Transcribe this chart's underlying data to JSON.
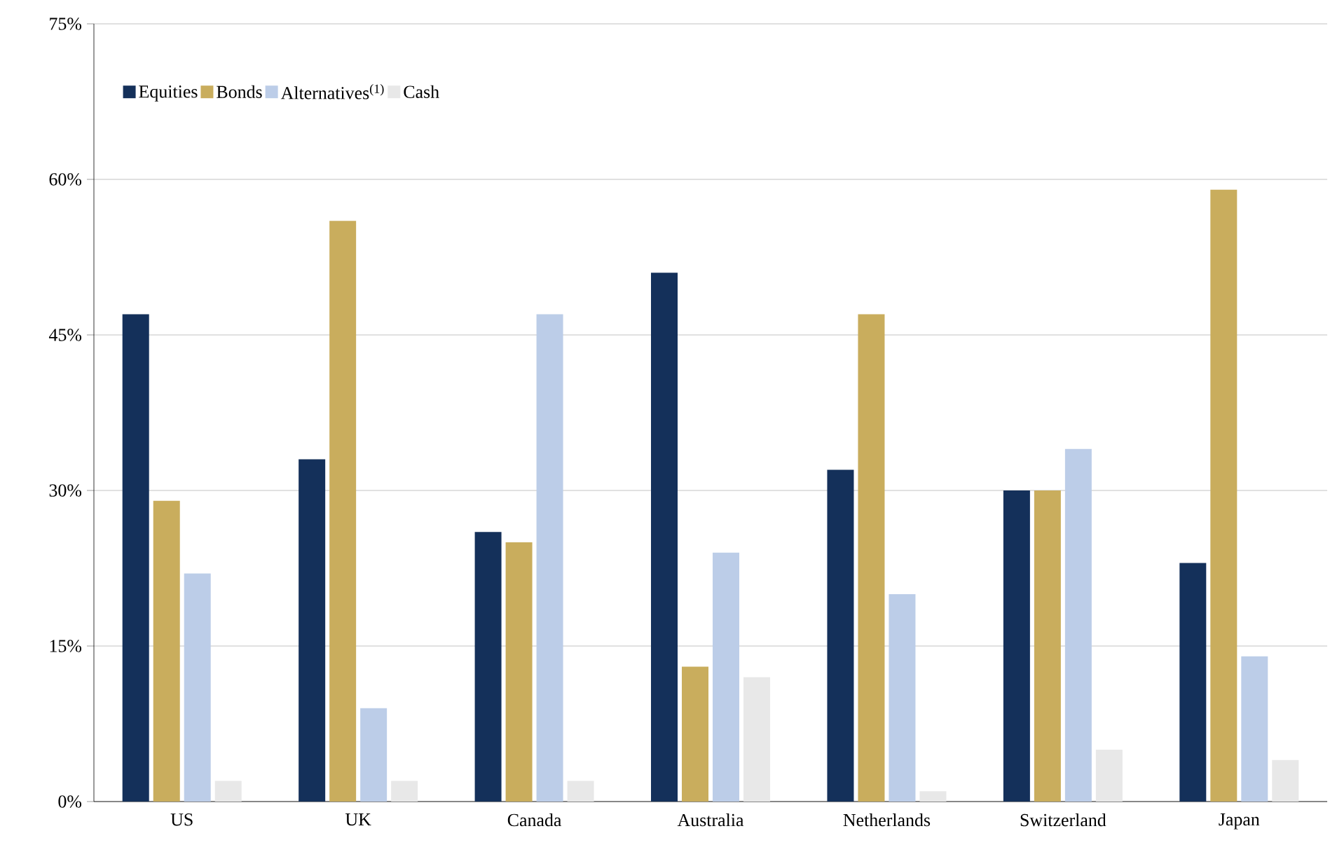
{
  "chart_data": {
    "type": "bar",
    "categories": [
      "US",
      "UK",
      "Canada",
      "Australia",
      "Netherlands",
      "Switzerland",
      "Japan"
    ],
    "series": [
      {
        "name": "Equities",
        "color": "#14305a",
        "values": [
          47,
          33,
          26,
          51,
          32,
          30,
          23
        ]
      },
      {
        "name": "Bonds",
        "color": "#c9ad5d",
        "values": [
          29,
          56,
          25,
          13,
          47,
          30,
          59
        ]
      },
      {
        "name": "Alternatives$^{(1)}$",
        "color": "#bccde8",
        "values": [
          22,
          9,
          47,
          24,
          20,
          34,
          14
        ]
      },
      {
        "name": "Cash",
        "color": "#e8e8e8",
        "values": [
          2,
          2,
          2,
          12,
          1,
          5,
          4
        ]
      }
    ],
    "ylim": [
      0,
      75
    ],
    "yticks": [
      {
        "value": 0,
        "label": "0%"
      },
      {
        "value": 15,
        "label": "15%"
      },
      {
        "value": 30,
        "label": "30%"
      },
      {
        "value": 45,
        "label": "45%"
      },
      {
        "value": 60,
        "label": "60%"
      },
      {
        "value": 75,
        "label": "75%"
      }
    ],
    "grid": "y",
    "legend": "top left"
  }
}
